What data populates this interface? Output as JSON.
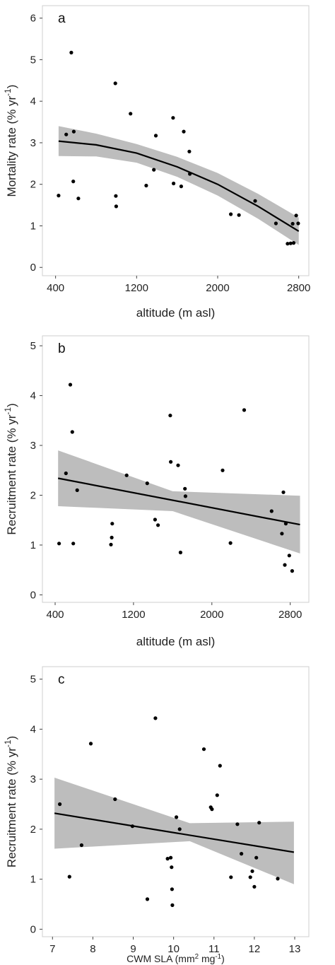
{
  "chart_data": [
    {
      "type": "scatter",
      "panel_label": "a",
      "xlabel": "altitude (m asl)",
      "ylabel_main": "Mortality rate (% yr",
      "ylabel_sup": "-1",
      "ylabel_tail": ")",
      "xlim": [
        270,
        2900
      ],
      "ylim": [
        -0.2,
        6.3
      ],
      "xticks": [
        400,
        1200,
        2000,
        2800
      ],
      "yticks": [
        0,
        1,
        2,
        3,
        4,
        5,
        6
      ],
      "grid": false,
      "points": [
        [
          430,
          1.73
        ],
        [
          505,
          3.2
        ],
        [
          555,
          5.17
        ],
        [
          575,
          2.07
        ],
        [
          580,
          3.27
        ],
        [
          625,
          1.66
        ],
        [
          990,
          4.43
        ],
        [
          995,
          1.72
        ],
        [
          998,
          1.47
        ],
        [
          1140,
          3.7
        ],
        [
          1295,
          1.97
        ],
        [
          1370,
          2.35
        ],
        [
          1390,
          3.17
        ],
        [
          1560,
          3.6
        ],
        [
          1565,
          2.02
        ],
        [
          1640,
          1.95
        ],
        [
          1665,
          3.27
        ],
        [
          1720,
          2.79
        ],
        [
          1725,
          2.25
        ],
        [
          2130,
          1.28
        ],
        [
          2210,
          1.26
        ],
        [
          2370,
          1.6
        ],
        [
          2575,
          1.06
        ],
        [
          2690,
          0.57
        ],
        [
          2720,
          0.58
        ],
        [
          2740,
          1.05
        ],
        [
          2750,
          0.59
        ],
        [
          2775,
          1.25
        ],
        [
          2795,
          1.06
        ]
      ],
      "fit": {
        "x": [
          430,
          800,
          1200,
          1600,
          2000,
          2400,
          2800
        ],
        "y": [
          3.04,
          2.95,
          2.75,
          2.42,
          2.0,
          1.47,
          0.87
        ],
        "lower": [
          2.68,
          2.67,
          2.52,
          2.18,
          1.73,
          1.17,
          0.54
        ],
        "upper": [
          3.4,
          3.22,
          2.97,
          2.66,
          2.27,
          1.77,
          1.2
        ]
      }
    },
    {
      "type": "scatter",
      "panel_label": "b",
      "xlabel": "altitude (m asl)",
      "ylabel_main": "Recruitment  rate (% yr",
      "ylabel_sup": "-1",
      "ylabel_tail": ")",
      "xlim": [
        270,
        2990
      ],
      "ylim": [
        -0.15,
        5.2
      ],
      "xticks": [
        400,
        1200,
        2000,
        2800
      ],
      "yticks": [
        0,
        1,
        2,
        3,
        4,
        5
      ],
      "grid": false,
      "points": [
        [
          440,
          1.03
        ],
        [
          510,
          2.44
        ],
        [
          555,
          4.22
        ],
        [
          575,
          3.27
        ],
        [
          585,
          1.03
        ],
        [
          625,
          2.1
        ],
        [
          970,
          1.01
        ],
        [
          978,
          1.15
        ],
        [
          983,
          1.43
        ],
        [
          1130,
          2.4
        ],
        [
          1340,
          2.24
        ],
        [
          1420,
          1.51
        ],
        [
          1450,
          1.4
        ],
        [
          1575,
          3.6
        ],
        [
          1580,
          2.67
        ],
        [
          1655,
          2.6
        ],
        [
          1680,
          0.85
        ],
        [
          1725,
          2.13
        ],
        [
          1730,
          1.98
        ],
        [
          2110,
          2.5
        ],
        [
          2190,
          1.04
        ],
        [
          2330,
          3.71
        ],
        [
          2610,
          1.68
        ],
        [
          2715,
          1.23
        ],
        [
          2730,
          2.06
        ],
        [
          2745,
          0.6
        ],
        [
          2755,
          1.43
        ],
        [
          2790,
          0.79
        ],
        [
          2820,
          0.48
        ]
      ],
      "fit": {
        "x": [
          430,
          2900
        ],
        "y": [
          2.34,
          1.41
        ],
        "lower": [
          1.78,
          0.83
        ],
        "upper": [
          2.9,
          1.99
        ],
        "ribbon_mid": [
          1600,
          1.68,
          2.08
        ]
      }
    },
    {
      "type": "scatter",
      "panel_label": "c",
      "xlabel_main": "CWM SLA (mm",
      "xlabel_sup": "2",
      "xlabel_mid": " mg",
      "xlabel_sup2": "-1",
      "xlabel_tail": ")",
      "ylabel_main": "Recruitment  rate (% yr",
      "ylabel_sup": "-1",
      "ylabel_tail": ")",
      "xlim": [
        6.75,
        13.35
      ],
      "ylim": [
        -0.15,
        5.25
      ],
      "xticks": [
        7,
        8,
        9,
        10,
        11,
        12,
        13
      ],
      "yticks": [
        0,
        1,
        2,
        3,
        4,
        5
      ],
      "grid": false,
      "points": [
        [
          7.18,
          2.5
        ],
        [
          7.42,
          1.05
        ],
        [
          7.72,
          1.68
        ],
        [
          7.95,
          3.71
        ],
        [
          8.55,
          2.6
        ],
        [
          8.98,
          2.06
        ],
        [
          9.35,
          0.6
        ],
        [
          9.55,
          4.22
        ],
        [
          9.85,
          1.41
        ],
        [
          9.93,
          1.43
        ],
        [
          9.95,
          1.24
        ],
        [
          9.96,
          0.8
        ],
        [
          9.97,
          0.48
        ],
        [
          10.07,
          2.24
        ],
        [
          10.15,
          2.0
        ],
        [
          10.75,
          3.6
        ],
        [
          10.92,
          2.44
        ],
        [
          10.95,
          2.4
        ],
        [
          11.08,
          2.68
        ],
        [
          11.15,
          3.27
        ],
        [
          11.42,
          1.04
        ],
        [
          11.58,
          2.1
        ],
        [
          11.68,
          1.51
        ],
        [
          11.9,
          1.04
        ],
        [
          11.95,
          1.16
        ],
        [
          12.0,
          0.85
        ],
        [
          12.05,
          1.43
        ],
        [
          12.12,
          2.13
        ],
        [
          12.58,
          1.01
        ]
      ],
      "fit": {
        "x": [
          7.05,
          12.98
        ],
        "y": [
          2.32,
          1.54
        ],
        "lower": [
          1.61,
          0.9
        ],
        "upper": [
          3.03,
          2.15
        ],
        "ribbon_mid": [
          10.4,
          1.76,
          2.12
        ]
      }
    }
  ]
}
